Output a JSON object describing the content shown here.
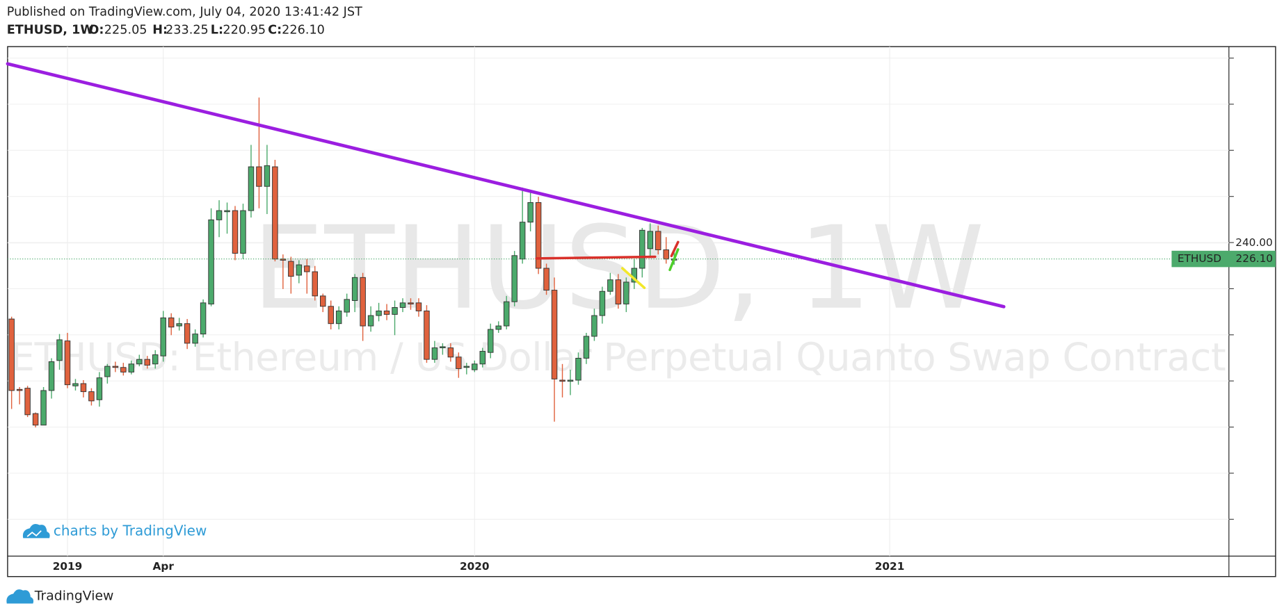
{
  "header": {
    "published": "Published on TradingView.com, July 04, 2020 13:41:42 JST",
    "symbol": "ETHUSD, 1W",
    "ohlc_labels": {
      "open": "O:",
      "high": "H:",
      "low": "L:",
      "close": "C:"
    }
  },
  "chart_data": {
    "type": "candlestick",
    "description": "ETHUSD: Ethereum / US Dollar Perpetual Quanto Swap Contract",
    "ticker": "ETHUSD",
    "last_close_label": "226.10",
    "up_color": "#4caa6c",
    "down_color": "#e0623e",
    "grid": true,
    "price_line": true,
    "ylim": [
      -31.6,
      410.2
    ],
    "yticks": [
      {
        "value": 240,
        "label": "240.00"
      }
    ],
    "categories": [
      null,
      null,
      null,
      null,
      null,
      null,
      null,
      "2019",
      null,
      null,
      null,
      null,
      null,
      null,
      null,
      null,
      null,
      null,
      null,
      "Apr",
      null,
      null,
      null,
      null,
      null,
      null,
      null,
      null,
      null,
      null,
      null,
      null,
      null,
      null,
      null,
      null,
      null,
      null,
      null,
      null,
      null,
      null,
      null,
      null,
      null,
      null,
      null,
      null,
      null,
      null,
      null,
      null,
      null,
      null,
      null,
      null,
      null,
      null,
      "2020",
      null,
      null,
      null,
      null,
      null,
      null,
      null,
      null,
      null,
      null,
      null,
      null,
      null,
      null,
      null,
      null,
      null,
      null,
      null,
      null,
      null,
      null,
      null,
      null,
      null,
      null,
      null,
      null,
      null,
      null,
      null,
      null,
      null,
      null,
      null,
      null,
      null,
      null,
      null,
      null,
      null,
      null,
      null,
      null,
      null,
      null,
      null,
      null,
      null,
      null,
      null,
      "2021",
      null,
      null,
      null,
      null,
      null,
      null,
      null,
      null,
      null,
      null,
      null,
      null,
      null,
      null,
      null,
      null,
      null,
      null,
      null,
      null,
      null,
      null,
      null,
      null,
      null,
      null,
      null,
      null,
      null,
      null,
      null,
      null,
      null,
      null,
      null,
      null,
      null,
      null,
      null,
      null,
      null,
      null
    ],
    "open": [
      174,
      113,
      114,
      92,
      82,
      112,
      138,
      155,
      116,
      118,
      111,
      104,
      124,
      133,
      132,
      128,
      135,
      139,
      135,
      142,
      175,
      168,
      170,
      153,
      161,
      187,
      260,
      267,
      268,
      231,
      268,
      306,
      289,
      306,
      226,
      224,
      212,
      220,
      215,
      194,
      185,
      170,
      180,
      190,
      210,
      168,
      177,
      181,
      178,
      184,
      188,
      188,
      181,
      139,
      149,
      149,
      141,
      132,
      130,
      135,
      145,
      165,
      168,
      189,
      226,
      258,
      275,
      218,
      199,
      121,
      120,
      121,
      140,
      159,
      177,
      198,
      208,
      187,
      206,
      218,
      235,
      250,
      234,
      225.05,
      null,
      null,
      null,
      null,
      null,
      null,
      null,
      null,
      null,
      null,
      null,
      null,
      null,
      null,
      null,
      null,
      null,
      null,
      null,
      null,
      null,
      null,
      null,
      null,
      null,
      null,
      null,
      null,
      null,
      null,
      null,
      null,
      null,
      null,
      null,
      null,
      null,
      null,
      null,
      null,
      null,
      null,
      null,
      null,
      null,
      null,
      null,
      null,
      null,
      null,
      null,
      null,
      null,
      null,
      null,
      null,
      null,
      null,
      null,
      null,
      null,
      null,
      null,
      null,
      null,
      null,
      null,
      null,
      null
    ],
    "high": [
      176,
      115,
      116,
      93,
      115,
      140,
      161,
      162,
      122,
      121,
      114,
      128,
      135,
      137,
      136,
      138,
      143,
      142,
      147,
      181,
      179,
      175,
      174,
      165,
      191,
      270,
      277,
      275,
      272,
      274,
      325,
      366,
      325,
      312,
      230,
      228,
      225,
      226,
      220,
      196,
      190,
      185,
      196,
      213,
      214,
      185,
      188,
      187,
      190,
      192,
      192,
      192,
      186,
      155,
      153,
      153,
      145,
      136,
      138,
      149,
      170,
      172,
      194,
      233,
      288,
      285,
      280,
      222,
      210,
      135,
      130,
      145,
      162,
      183,
      202,
      214,
      213,
      210,
      226,
      253,
      257,
      255,
      245,
      233.25,
      null,
      null,
      null,
      null,
      null,
      null,
      null,
      null,
      null,
      null,
      null,
      null,
      null,
      null,
      null,
      null,
      null,
      null,
      null,
      null,
      null,
      null,
      null,
      null,
      null,
      null,
      null,
      null,
      null,
      null,
      null,
      null,
      null,
      null,
      null,
      null,
      null,
      null,
      null,
      null,
      null,
      null,
      null,
      null,
      null,
      null,
      null,
      null,
      null,
      null,
      null,
      null,
      null,
      null,
      null,
      null,
      null,
      null,
      null,
      null,
      null,
      null,
      null,
      null,
      null,
      null,
      null,
      null,
      null
    ],
    "low": [
      96,
      100,
      89,
      80,
      82,
      105,
      130,
      114,
      112,
      106,
      99,
      98,
      118,
      128,
      125,
      126,
      133,
      131,
      131,
      137,
      160,
      164,
      148,
      150,
      158,
      185,
      245,
      248,
      225,
      226,
      262,
      270,
      265,
      224,
      200,
      196,
      205,
      196,
      190,
      180,
      165,
      165,
      176,
      180,
      155,
      163,
      172,
      173,
      160,
      180,
      182,
      176,
      136,
      136,
      143,
      137,
      123,
      126,
      128,
      132,
      140,
      162,
      165,
      185,
      222,
      250,
      213,
      195,
      85,
      106,
      108,
      117,
      135,
      155,
      170,
      195,
      183,
      180,
      200,
      210,
      228,
      230,
      222,
      220.95,
      null,
      null,
      null,
      null,
      null,
      null,
      null,
      null,
      null,
      null,
      null,
      null,
      null,
      null,
      null,
      null,
      null,
      null,
      null,
      null,
      null,
      null,
      null,
      null,
      null,
      null,
      null,
      null,
      null,
      null,
      null,
      null,
      null,
      null,
      null,
      null,
      null,
      null,
      null,
      null,
      null,
      null,
      null,
      null,
      null,
      null,
      null,
      null,
      null,
      null,
      null,
      null,
      null,
      null,
      null,
      null,
      null,
      null,
      null,
      null,
      null,
      null,
      null,
      null,
      null,
      null,
      null,
      null,
      null
    ],
    "close": [
      112,
      112,
      91,
      82,
      112,
      137,
      156,
      117,
      118,
      111,
      103,
      123,
      133,
      132,
      128,
      135,
      139,
      134,
      143,
      175,
      167,
      170,
      153,
      161,
      188,
      260,
      268,
      268,
      231,
      268,
      306,
      289,
      307,
      226,
      225,
      211,
      221,
      215,
      194,
      185,
      170,
      181,
      191,
      210,
      168,
      177,
      181,
      178,
      184,
      188,
      187,
      181,
      139,
      149,
      150,
      141,
      131,
      133,
      135,
      146,
      165,
      168,
      189,
      229,
      258,
      275,
      218,
      199,
      122,
      120,
      121,
      140,
      159,
      177,
      198,
      208,
      187,
      206,
      218,
      251,
      250,
      234,
      226,
      226.1,
      null,
      null,
      null,
      null,
      null,
      null,
      null,
      null,
      null,
      null,
      null,
      null,
      null,
      null,
      null,
      null,
      null,
      null,
      null,
      null,
      null,
      null,
      null,
      null,
      null,
      null,
      null,
      null,
      null,
      null,
      null,
      null,
      null,
      null,
      null,
      null,
      null,
      null,
      null,
      null,
      null,
      null,
      null,
      null,
      null,
      null,
      null,
      null,
      null,
      null,
      null,
      null,
      null,
      null,
      null,
      null,
      null,
      null,
      null,
      null,
      null,
      null,
      null,
      null,
      null,
      null,
      null,
      null,
      null
    ]
  },
  "branding": {
    "chart_credit": "charts by TradingView",
    "logo": "TradingView"
  }
}
